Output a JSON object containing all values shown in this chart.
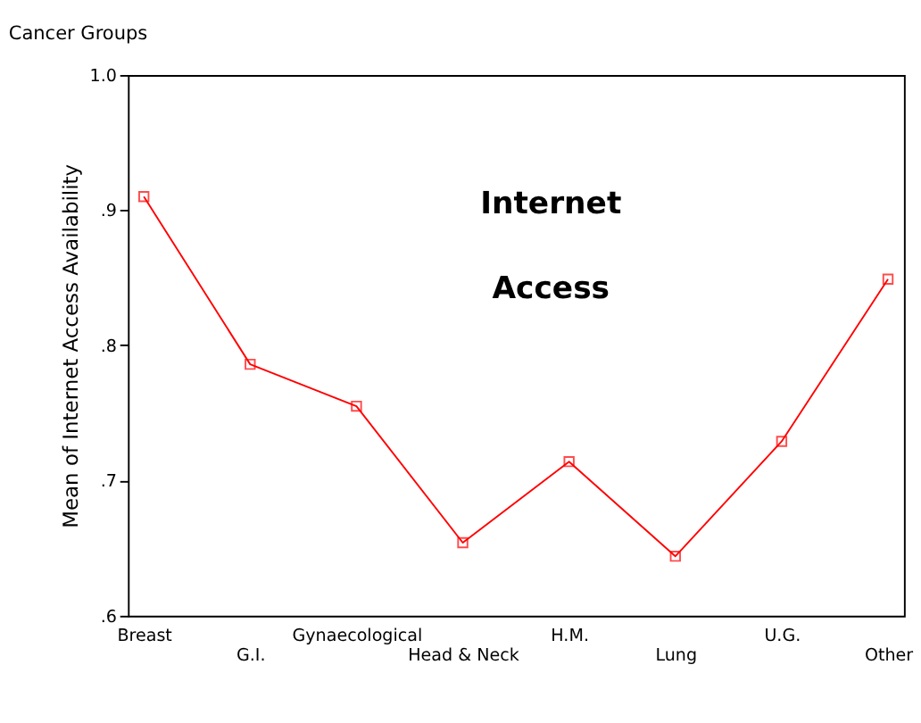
{
  "chart_data": {
    "type": "line",
    "title": "Cancer Groups",
    "ylabel": "Mean of Internet Access Availability",
    "annotations": [
      "Internet Access"
    ],
    "categories": [
      "Breast",
      "G.I.",
      "Gynaecological",
      "Head & Neck",
      "H.M.",
      "Lung",
      "U.G.",
      "Other"
    ],
    "series": [
      {
        "color": "#ff0000",
        "values": [
          0.91,
          0.786,
          0.755,
          0.654,
          0.714,
          0.644,
          0.729,
          0.849
        ]
      }
    ],
    "ylim": [
      0.6,
      1.0
    ],
    "yticks": [
      {
        "value": 0.6,
        "label": ".6"
      },
      {
        "value": 0.7,
        "label": ".7"
      },
      {
        "value": 0.8,
        "label": ".8"
      },
      {
        "value": 0.9,
        "label": ".9"
      },
      {
        "value": 1.0,
        "label": "1.0"
      }
    ],
    "marker": "square",
    "grid": false
  }
}
